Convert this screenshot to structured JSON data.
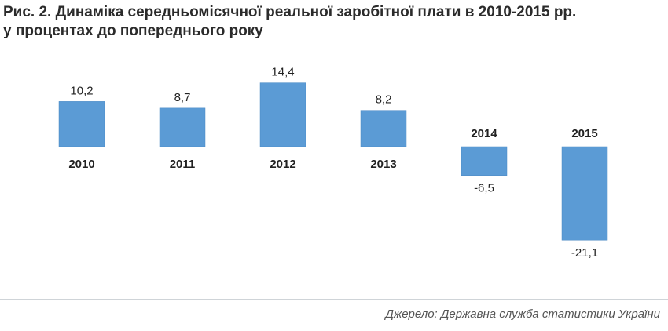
{
  "title": {
    "line1": "Рис. 2. Динаміка середньомісячної реальної заробітної плати в 2010-2015 рр.",
    "line2": "у процентах до попереднього року"
  },
  "source": "Джерело: Державна служба статистики України",
  "colors": {
    "bar": "#5b9bd5",
    "bar_edge": "#4a89c4",
    "rule": "#cfd4d8"
  },
  "chart_data": {
    "type": "bar",
    "categories": [
      "2010",
      "2011",
      "2012",
      "2013",
      "2014",
      "2015"
    ],
    "values": [
      10.2,
      8.7,
      14.4,
      8.2,
      -6.5,
      -21.1
    ],
    "value_labels": [
      "10,2",
      "8,7",
      "14,4",
      "8,2",
      "-6,5",
      "-21,1"
    ],
    "title": "Рис. 2. Динаміка середньомісячної реальної заробітної плати в 2010-2015 рр. у процентах до попереднього року",
    "xlabel": "",
    "ylabel": "",
    "ylim": [
      -21.1,
      14.4
    ],
    "grid": false,
    "legend": "none",
    "axis_visible": false
  }
}
